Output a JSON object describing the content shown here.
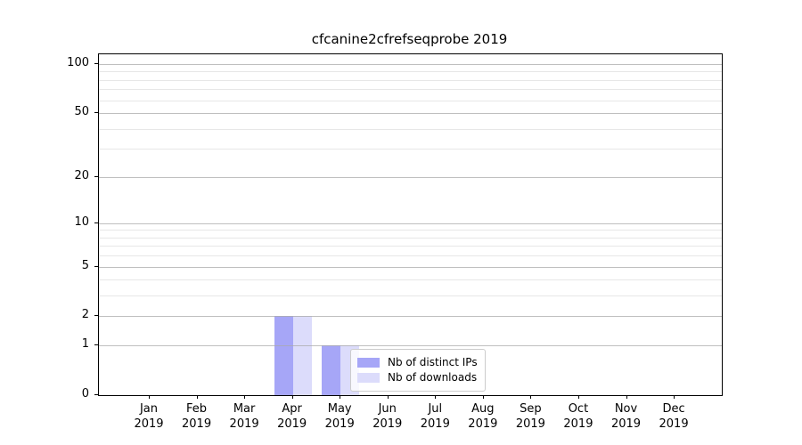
{
  "figure": {
    "title": "cfcanine2cfrefseqprobe 2019"
  },
  "chart_data": {
    "type": "bar",
    "title": "cfcanine2cfrefseqprobe 2019",
    "categories": [
      "Jan 2019",
      "Feb 2019",
      "Mar 2019",
      "Apr 2019",
      "May 2019",
      "Jun 2019",
      "Jul 2019",
      "Aug 2019",
      "Sep 2019",
      "Oct 2019",
      "Nov 2019",
      "Dec 2019"
    ],
    "x_tick_months": [
      "Jan",
      "Feb",
      "Mar",
      "Apr",
      "May",
      "Jun",
      "Jul",
      "Aug",
      "Sep",
      "Oct",
      "Nov",
      "Dec"
    ],
    "x_tick_year": "2019",
    "series": [
      {
        "name": "Nb of distinct IPs",
        "color": "#a6a6f7",
        "values": [
          0,
          0,
          0,
          2,
          1,
          0,
          0,
          0,
          0,
          0,
          0,
          0
        ]
      },
      {
        "name": "Nb of downloads",
        "color": "#dcdcfb",
        "values": [
          0,
          0,
          0,
          2,
          1,
          0,
          0,
          0,
          0,
          0,
          0,
          0
        ]
      }
    ],
    "yscale": "log1p",
    "ylim": [
      0,
      115
    ],
    "y_major_ticks": [
      0,
      1,
      2,
      5,
      10,
      20,
      50,
      100
    ],
    "y_minor_gridlines": [
      3,
      4,
      6,
      7,
      8,
      9,
      30,
      40,
      60,
      70,
      80,
      90
    ],
    "grid": true,
    "xlabel": "",
    "ylabel": "",
    "legend_position": "lower center"
  },
  "colors": {
    "grid_major": "#aaaaaa",
    "grid_minor": "#e1e1e1",
    "spine": "#000000",
    "legend_border": "#cccccc",
    "background": "#ffffff"
  }
}
